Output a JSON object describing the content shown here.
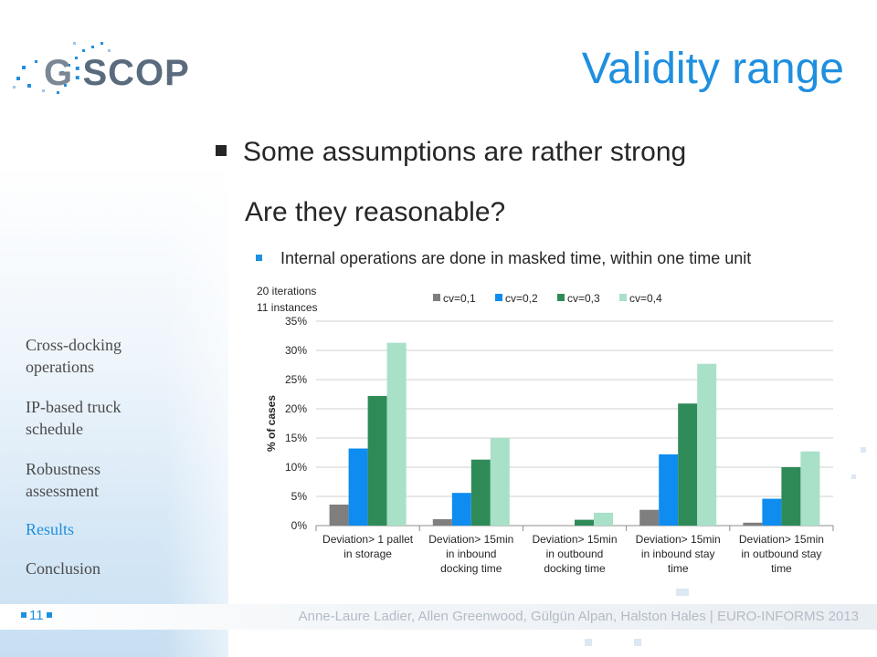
{
  "logo": {
    "text_g": "G",
    "text_scop": "SCOP"
  },
  "slide": {
    "title": "Validity range",
    "bullet_main": "Some assumptions are rather strong",
    "bullet_main_cont": "Are they reasonable?",
    "bullet_sub": "Internal operations are done in masked time, within one time unit"
  },
  "chart_notes": {
    "iterations": "20 iterations",
    "instances": "11 instances"
  },
  "nav": {
    "items": [
      {
        "label_1": "Cross-docking",
        "label_2": "operations"
      },
      {
        "label_1": "IP-based truck",
        "label_2": "schedule"
      },
      {
        "label_1": "Robustness",
        "label_2": "assessment"
      },
      {
        "label_1": "Results",
        "label_2": ""
      },
      {
        "label_1": "Conclusion",
        "label_2": ""
      }
    ]
  },
  "footer": {
    "page": "11",
    "text": "Anne-Laure Ladier, Allen Greenwood, Gülgün Alpan, Halston Hales  | EURO-INFORMS 2013"
  },
  "colors": {
    "accent": "#1f8fe0",
    "cv01": "#7f7f7f",
    "cv02": "#0f8cf0",
    "cv03": "#2e8b57",
    "cv04": "#a8e0c8"
  },
  "chart_data": {
    "type": "bar",
    "ylabel": "% of cases",
    "ylim": [
      0,
      35
    ],
    "yticks": [
      "0%",
      "5%",
      "10%",
      "15%",
      "20%",
      "25%",
      "30%",
      "35%"
    ],
    "categories": [
      [
        "Deviation> 1 pallet",
        "in storage",
        ""
      ],
      [
        "Deviation> 15min",
        "in inbound",
        "docking time"
      ],
      [
        "Deviation> 15min",
        "in outbound",
        "docking time"
      ],
      [
        "Deviation> 15min",
        "in inbound stay",
        "time"
      ],
      [
        "Deviation> 15min",
        "in outbound stay",
        "time"
      ]
    ],
    "legend_position": "top",
    "grid": true,
    "series": [
      {
        "name": "cv=0,1",
        "color": "#7f7f7f",
        "values": [
          3.6,
          1.1,
          0,
          2.7,
          0.5
        ]
      },
      {
        "name": "cv=0,2",
        "color": "#0f8cf0",
        "values": [
          13.2,
          5.6,
          0,
          12.2,
          4.6
        ]
      },
      {
        "name": "cv=0,3",
        "color": "#2e8b57",
        "values": [
          22.2,
          11.3,
          1.0,
          20.9,
          10.0
        ]
      },
      {
        "name": "cv=0,4",
        "color": "#a8e0c8",
        "values": [
          31.3,
          15.0,
          2.2,
          27.7,
          12.7
        ]
      }
    ]
  }
}
